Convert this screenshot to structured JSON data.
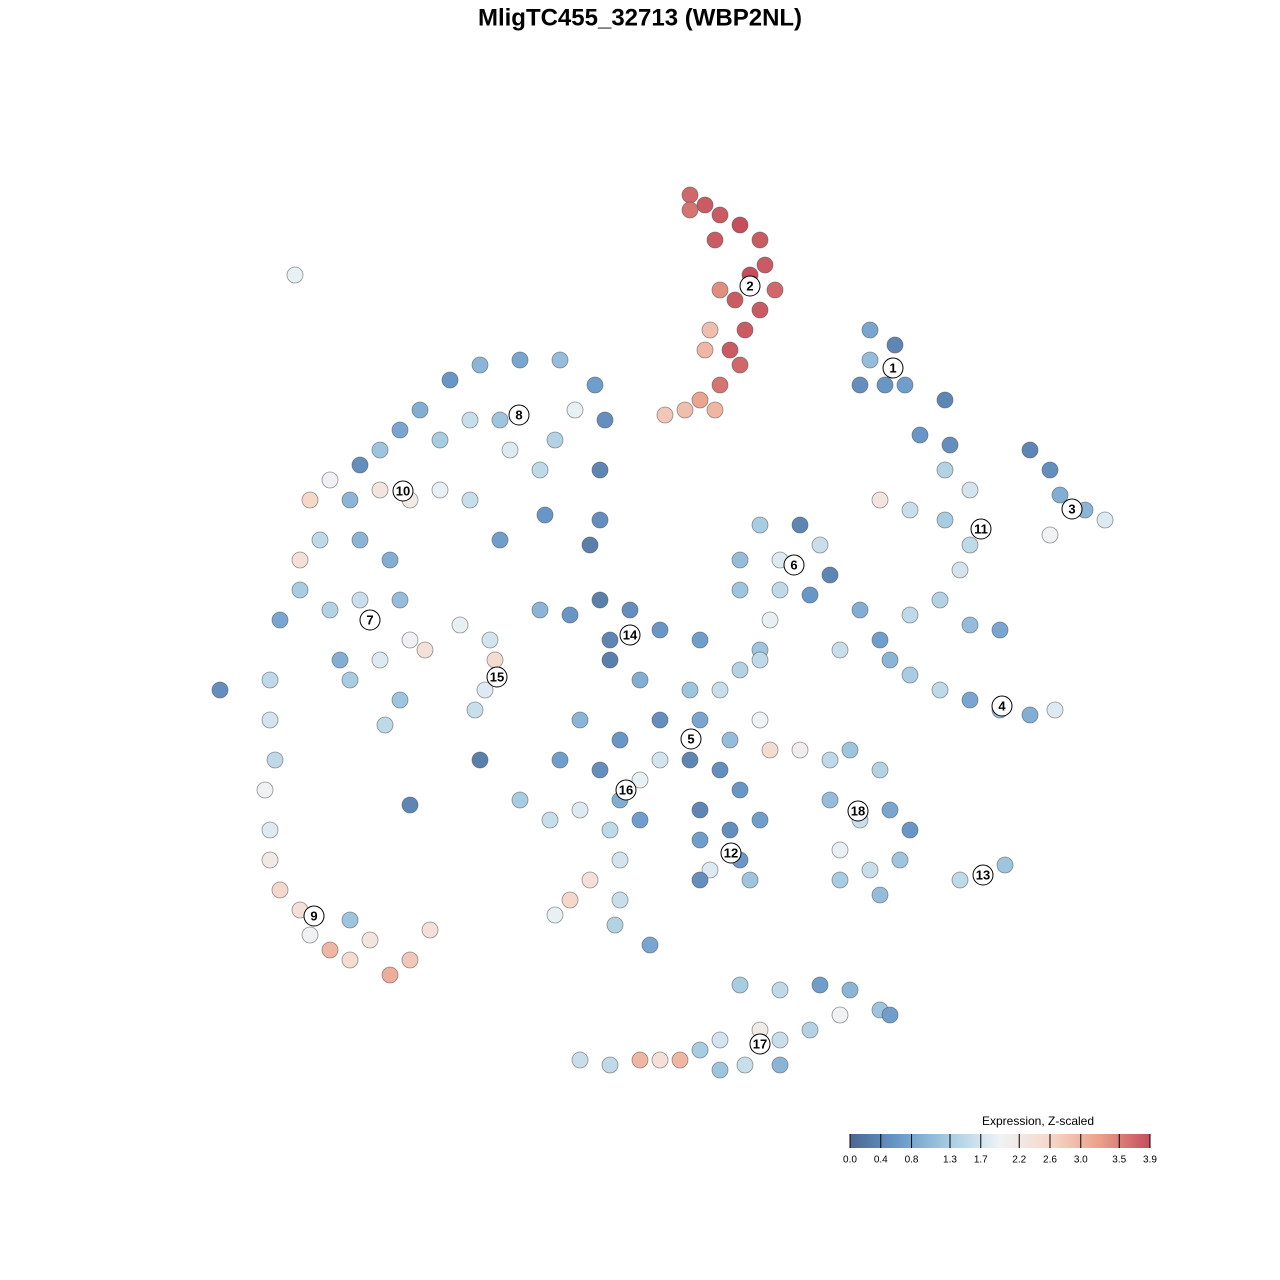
{
  "chart_data": {
    "type": "scatter",
    "title": "MligTC455_32713 (WBP2NL)",
    "xlim": [
      0,
      960
    ],
    "ylim": [
      0,
      960
    ],
    "colorscale": [
      "#4a6790",
      "#6a9acb",
      "#a8cde2",
      "#eef3f6",
      "#f6d8ca",
      "#eaa08b",
      "#c44e5c"
    ],
    "x": [
      530,
      545,
      560,
      580,
      600,
      605,
      590,
      615,
      575,
      600,
      560,
      585,
      570,
      545,
      550,
      560,
      540,
      555,
      525,
      505,
      580,
      530,
      555,
      290,
      320,
      360,
      400,
      435,
      445,
      440,
      440,
      430,
      385,
      380,
      350,
      340,
      360,
      395,
      415,
      310,
      280,
      260,
      240,
      220,
      200,
      170,
      150,
      190,
      220,
      250,
      280,
      310,
      340,
      140,
      160,
      200,
      230,
      140,
      120,
      170,
      200,
      240,
      250,
      265,
      220,
      240,
      225,
      190,
      180,
      110,
      110,
      115,
      105,
      110,
      110,
      120,
      140,
      150,
      170,
      190,
      210,
      230,
      250,
      270,
      190,
      135,
      60,
      300,
      330,
      335,
      325,
      315,
      380,
      410,
      440,
      470,
      450,
      500,
      540,
      450,
      480,
      530,
      560,
      580,
      600,
      500,
      540,
      570,
      530,
      500,
      560,
      460,
      420,
      400,
      440,
      600,
      610,
      580,
      540,
      600,
      360,
      390,
      420,
      460,
      480,
      450,
      460,
      430,
      410,
      395,
      460,
      455,
      490,
      480,
      320,
      250,
      540,
      570,
      550,
      580,
      590,
      540,
      600,
      640,
      660,
      580,
      620,
      670,
      580,
      620,
      650,
      610,
      600,
      680,
      700,
      720,
      730,
      750,
      780,
      810,
      840,
      870,
      895,
      760,
      790,
      785,
      810,
      720,
      750,
      785,
      810,
      800,
      780,
      750,
      810,
      840,
      870,
      890,
      900,
      925,
      945,
      890,
      710,
      710,
      735,
      725,
      745,
      700,
      785,
      640,
      670,
      690,
      720,
      670,
      700,
      730,
      750,
      680,
      710,
      680,
      720,
      740,
      800,
      825,
      845,
      580,
      620,
      660,
      690,
      720,
      730,
      680,
      650,
      620,
      600,
      560,
      540,
      520,
      500,
      480,
      450,
      420,
      560,
      585,
      620
    ],
    "y": [
      905,
      895,
      885,
      875,
      860,
      835,
      825,
      810,
      800,
      790,
      810,
      770,
      750,
      750,
      770,
      715,
      700,
      690,
      690,
      685,
      735,
      890,
      860,
      720,
      735,
      740,
      740,
      715,
      680,
      630,
      580,
      555,
      585,
      630,
      650,
      680,
      685,
      660,
      690,
      680,
      660,
      690,
      670,
      650,
      635,
      620,
      600,
      600,
      610,
      600,
      610,
      600,
      560,
      540,
      560,
      560,
      540,
      510,
      480,
      490,
      500,
      500,
      460,
      450,
      440,
      400,
      375,
      420,
      440,
      420,
      380,
      340,
      310,
      270,
      240,
      210,
      190,
      165,
      150,
      140,
      160,
      125,
      140,
      170,
      180,
      825,
      410,
      475,
      460,
      440,
      410,
      390,
      490,
      485,
      500,
      490,
      460,
      470,
      460,
      440,
      420,
      410,
      410,
      430,
      450,
      380,
      380,
      360,
      340,
      340,
      330,
      360,
      380,
      340,
      330,
      380,
      350,
      310,
      290,
      280,
      300,
      280,
      290,
      300,
      320,
      270,
      240,
      220,
      200,
      185,
      200,
      175,
      155,
      280,
      340,
      295,
      260,
      270,
      230,
      240,
      220,
      220,
      575,
      575,
      555,
      540,
      540,
      525,
      510,
      510,
      505,
      480,
      440,
      450,
      490,
      460,
      440,
      425,
      410,
      400,
      390,
      385,
      390,
      665,
      655,
      630,
      610,
      600,
      590,
      580,
      555,
      530,
      500,
      485,
      475,
      470,
      650,
      630,
      605,
      590,
      580,
      565,
      770,
      740,
      755,
      715,
      715,
      715,
      700,
      350,
      340,
      350,
      330,
      300,
      280,
      290,
      270,
      250,
      230,
      220,
      205,
      240,
      220,
      225,
      235,
      115,
      110,
      115,
      110,
      90,
      85,
      85,
      70,
      60,
      70,
      60,
      50,
      40,
      40,
      40,
      35,
      40,
      30,
      35,
      35
    ],
    "values": [
      3.7,
      3.8,
      3.8,
      3.9,
      3.8,
      3.8,
      3.9,
      3.7,
      3.8,
      3.8,
      3.4,
      3.8,
      3.8,
      3.0,
      2.9,
      3.6,
      3.2,
      3.0,
      2.9,
      2.8,
      3.7,
      3.6,
      3.8,
      0.6,
      1.0,
      0.8,
      1.1,
      0.7,
      0.5,
      0.4,
      0.5,
      0.3,
      0.6,
      1.5,
      1.8,
      1.2,
      1.0,
      1.4,
      1.9,
      1.6,
      1.3,
      0.9,
      0.8,
      1.2,
      0.5,
      2.0,
      2.6,
      1.0,
      2.3,
      2.2,
      1.9,
      1.6,
      0.7,
      2.4,
      1.5,
      1.0,
      0.9,
      1.3,
      0.8,
      1.4,
      1.6,
      1.1,
      2.0,
      2.4,
      1.8,
      1.2,
      1.5,
      1.3,
      0.9,
      1.5,
      1.7,
      1.5,
      2.0,
      1.8,
      2.2,
      2.6,
      2.4,
      2.0,
      3.0,
      2.5,
      2.3,
      3.1,
      2.8,
      2.4,
      1.2,
      1.9,
      0.5,
      1.9,
      1.7,
      2.5,
      1.8,
      1.6,
      1.0,
      0.6,
      0.3,
      0.5,
      0.4,
      0.6,
      0.7,
      0.3,
      0.9,
      1.2,
      1.6,
      1.4,
      1.2,
      0.5,
      0.8,
      1.1,
      0.4,
      1.7,
      0.5,
      0.6,
      1.0,
      0.7,
      0.5,
      2.0,
      2.5,
      0.6,
      0.4,
      0.7,
      1.3,
      1.6,
      1.8,
      0.9,
      1.9,
      1.5,
      1.7,
      2.4,
      2.6,
      1.9,
      1.6,
      1.4,
      0.8,
      0.7,
      0.3,
      0.4,
      0.7,
      0.5,
      1.8,
      0.6,
      1.2,
      0.5,
      1.3,
      0.4,
      1.6,
      1.1,
      1.8,
      0.4,
      1.2,
      1.5,
      0.6,
      1.9,
      1.5,
      1.6,
      0.9,
      0.7,
      1.0,
      1.3,
      1.5,
      0.8,
      1.1,
      0.9,
      1.8,
      0.6,
      0.5,
      1.4,
      1.7,
      2.3,
      1.6,
      1.3,
      1.5,
      1.7,
      1.4,
      1.5,
      1.1,
      0.8,
      0.4,
      0.5,
      0.9,
      1.0,
      1.8,
      2.0,
      0.8,
      1.1,
      0.4,
      0.6,
      0.7,
      0.5,
      0.4,
      2.1,
      1.5,
      1.2,
      1.4,
      1.1,
      1.6,
      0.8,
      0.6,
      1.9,
      1.6,
      1.3,
      1.1,
      1.2,
      1.5,
      0.9,
      1.2,
      1.3,
      1.5,
      0.7,
      1.0,
      1.2,
      0.7,
      2.0,
      1.4,
      1.6,
      2.2,
      1.7,
      1.3,
      3.0,
      2.4,
      3.0,
      1.5,
      1.6,
      1.2,
      1.6,
      1.0
    ],
    "annotations": [
      {
        "text": "1",
        "x": 733,
        "y": 732
      },
      {
        "text": "2",
        "x": 590,
        "y": 814
      },
      {
        "text": "3",
        "x": 912,
        "y": 591
      },
      {
        "text": "4",
        "x": 842,
        "y": 394
      },
      {
        "text": "5",
        "x": 531,
        "y": 361
      },
      {
        "text": "6",
        "x": 634,
        "y": 535
      },
      {
        "text": "7",
        "x": 210,
        "y": 480
      },
      {
        "text": "8",
        "x": 359,
        "y": 685
      },
      {
        "text": "9",
        "x": 154,
        "y": 184
      },
      {
        "text": "10",
        "x": 243,
        "y": 609
      },
      {
        "text": "11",
        "x": 821,
        "y": 571
      },
      {
        "text": "12",
        "x": 571,
        "y": 247
      },
      {
        "text": "13",
        "x": 823,
        "y": 225
      },
      {
        "text": "14",
        "x": 470,
        "y": 465
      },
      {
        "text": "15",
        "x": 337,
        "y": 423
      },
      {
        "text": "16",
        "x": 466,
        "y": 310
      },
      {
        "text": "17",
        "x": 600,
        "y": 56
      },
      {
        "text": "18",
        "x": 698,
        "y": 289
      }
    ],
    "colorbar": {
      "title": "Expression, Z-scaled",
      "lim": [
        0,
        3.9
      ],
      "ticks": [
        {
          "value": 0,
          "label": "0.0"
        },
        0.4,
        0.8,
        1.3,
        1.7,
        2.2,
        2.6,
        {
          "value": 3,
          "label": "3.0"
        },
        3.5,
        3.9
      ]
    }
  }
}
